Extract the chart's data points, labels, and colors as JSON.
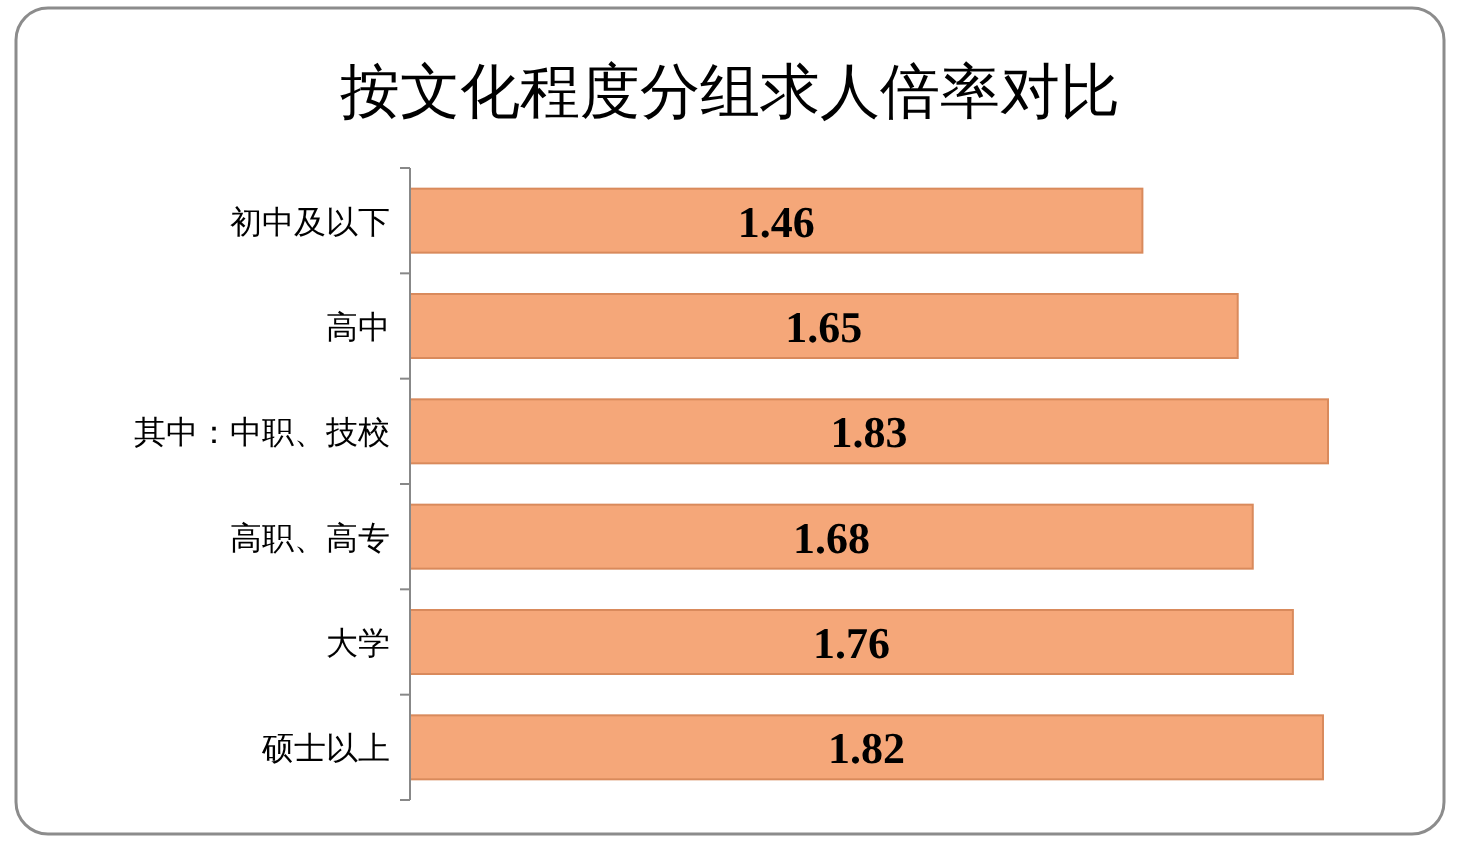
{
  "chart_data": {
    "type": "bar",
    "orientation": "horizontal",
    "title": "按文化程度分组求人倍率对比",
    "categories": [
      "初中及以下",
      "高中",
      "其中：中职、技校",
      "高职、高专",
      "大学",
      "硕士以上"
    ],
    "values": [
      1.46,
      1.65,
      1.83,
      1.68,
      1.76,
      1.82
    ],
    "color": "#f5a779",
    "data_labels": true
  }
}
